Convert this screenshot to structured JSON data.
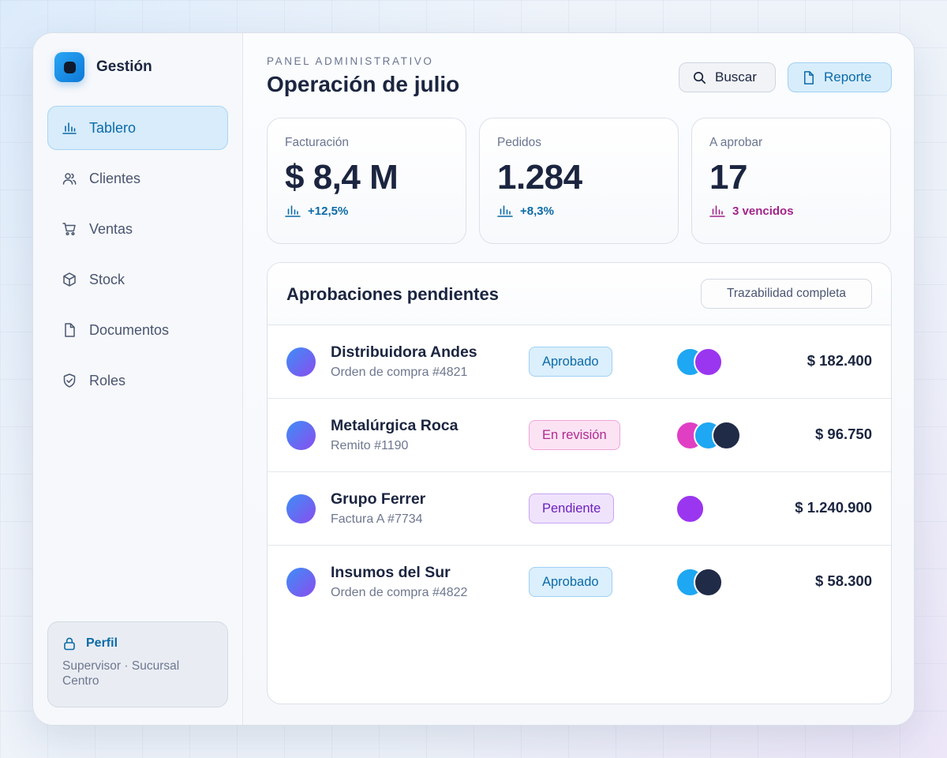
{
  "brand": {
    "name": "Gestión"
  },
  "sidebar": {
    "items": [
      {
        "label": "Tablero",
        "icon": "chart-icon",
        "active": true
      },
      {
        "label": "Clientes",
        "icon": "users-icon",
        "active": false
      },
      {
        "label": "Ventas",
        "icon": "cart-icon",
        "active": false
      },
      {
        "label": "Stock",
        "icon": "box-icon",
        "active": false
      },
      {
        "label": "Documentos",
        "icon": "document-icon",
        "active": false
      },
      {
        "label": "Roles",
        "icon": "shield-icon",
        "active": false
      }
    ],
    "profile": {
      "title": "Perfil",
      "subtitle": "Supervisor · Sucursal Centro",
      "icon": "lock-icon"
    }
  },
  "header": {
    "eyebrow": "PANEL ADMINISTRATIVO",
    "title": "Operación de julio",
    "search_label": "Buscar",
    "report_label": "Reporte"
  },
  "kpis": [
    {
      "label": "Facturación",
      "value": "$ 8,4 M",
      "delta": "+12,5%",
      "color": "#0b6ba8"
    },
    {
      "label": "Pedidos",
      "value": "1.284",
      "delta": "+8,3%",
      "color": "#0b6ba8"
    },
    {
      "label": "A aprobar",
      "value": "17",
      "delta": "3 vencidos",
      "color": "#a3248a"
    }
  ],
  "approvals": {
    "title": "Aprobaciones pendientes",
    "trace_label": "Trazabilidad completa",
    "rows": [
      {
        "name": "Distribuidora Andes",
        "doc": "Orden de compra #4821",
        "status": "Aprobado",
        "amount": "$ 182.400"
      },
      {
        "name": "Metalúrgica Roca",
        "doc": "Remito #1190",
        "status": "En revisión",
        "amount": "$ 96.750"
      },
      {
        "name": "Grupo Ferrer",
        "doc": "Factura A #7734",
        "status": "Pendiente",
        "amount": "$ 1.240.900"
      },
      {
        "name": "Insumos del Sur",
        "doc": "Orden de compra #4822",
        "status": "Aprobado",
        "amount": "$ 58.300"
      }
    ]
  },
  "colors": {
    "accent": "#0b6ba8",
    "assignee_blue": "#1ea7f2",
    "assignee_purple": "#9b36f0",
    "assignee_pink": "#e03fc4",
    "assignee_navy": "#1f2b47"
  }
}
